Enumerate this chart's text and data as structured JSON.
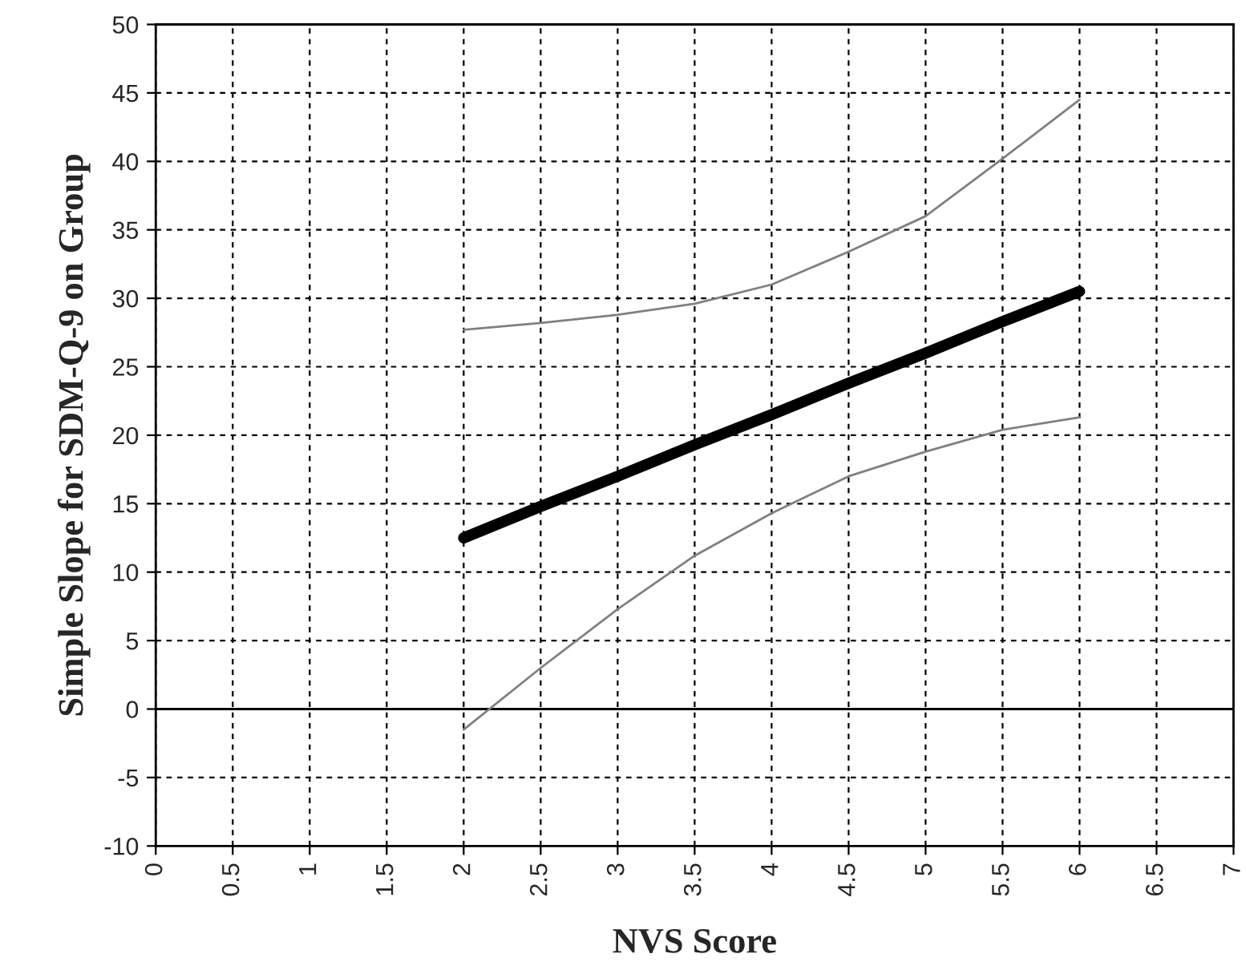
{
  "chart_data": {
    "type": "line",
    "xlabel": "NVS Score",
    "ylabel": "Simple Slope for SDM-Q-9 on Group",
    "x": [
      2,
      2.5,
      3,
      3.5,
      4,
      4.5,
      5,
      5.5,
      6
    ],
    "series": [
      {
        "color": "#000000",
        "values": [
          12.5,
          14.8,
          17,
          19.3,
          21.5,
          23.8,
          26,
          28.3,
          30.5
        ]
      },
      {
        "color": "#808080",
        "values": [
          27.7,
          28.2,
          28.8,
          29.6,
          31.0,
          33.4,
          36.0,
          40.2,
          44.5
        ]
      },
      {
        "color": "#808080",
        "values": [
          -1.5,
          3.0,
          7.3,
          11.2,
          14.3,
          17.0,
          18.8,
          20.4,
          21.3
        ]
      }
    ],
    "xlim": [
      0,
      7
    ],
    "xticks": [
      0,
      0.5,
      1,
      1.5,
      2,
      2.5,
      3,
      3.5,
      4,
      4.5,
      5,
      5.5,
      6,
      6.5,
      7
    ],
    "ylim": [
      -10,
      50
    ],
    "yticks": [
      -10,
      -5,
      0,
      5,
      10,
      15,
      20,
      25,
      30,
      35,
      40,
      45,
      50
    ],
    "ref_lines": [
      {
        "axis": "y",
        "value": 0,
        "color": "#000000",
        "line_style": "solid"
      }
    ],
    "grid": true,
    "line_style": "solid",
    "marker": "none",
    "legend": false
  }
}
